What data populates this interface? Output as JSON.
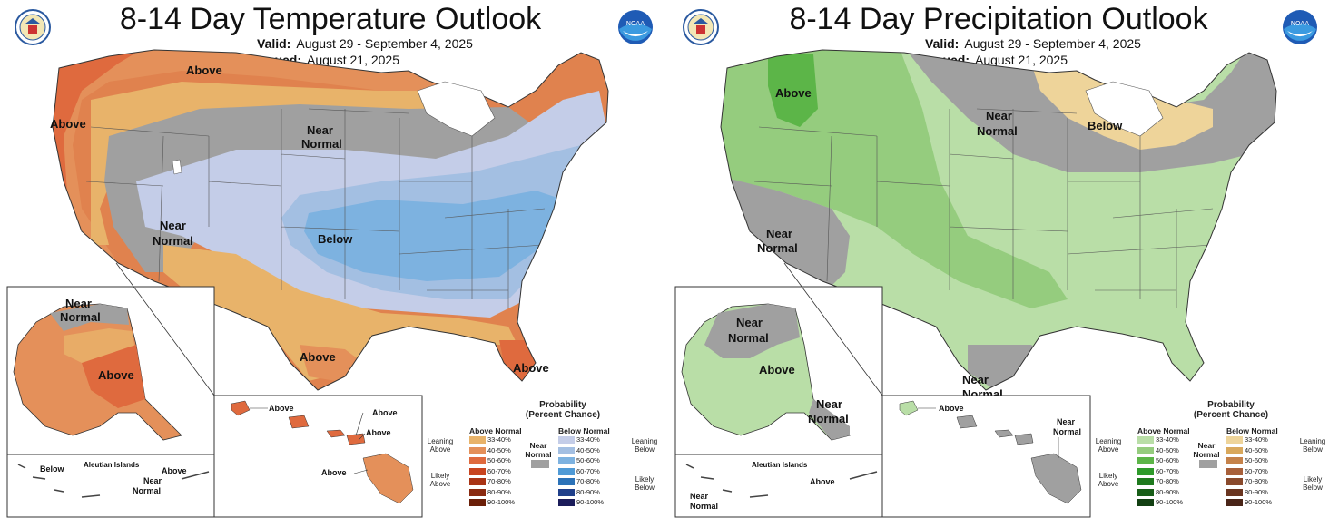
{
  "temperature": {
    "title": "8-14 Day Temperature Outlook",
    "valid_label": "Valid:",
    "valid_value": "August 29 - September 4, 2025",
    "issued_label": "Issued:",
    "issued_value": "August 21, 2025",
    "map_labels": {
      "above_pnw": "Above",
      "above_west": "Above",
      "near_normal_north": "Near",
      "near_normal_north2": "Normal",
      "near_normal_sw": "Near",
      "near_normal_sw2": "Normal",
      "below": "Below",
      "above_texas": "Above",
      "above_florida": "Above",
      "ak_near": "Near",
      "ak_normal": "Normal",
      "ak_above": "Above",
      "aleutian_title": "Aleutian Islands",
      "aleutian_below": "Below",
      "aleutian_above": "Above",
      "aleutian_near": "Near",
      "aleutian_normal": "Normal",
      "hi_above1": "Above",
      "hi_above2": "Above",
      "hi_above3": "Above",
      "hi_above4": "Above"
    },
    "legend": {
      "title1": "Probability",
      "title2": "(Percent Chance)",
      "left_header": "Above Normal",
      "right_header": "Below Normal",
      "near_normal": "Near\nNormal",
      "leaning_left": "Leaning\nAbove",
      "likely_left": "Likely\nAbove",
      "leaning_right": "Leaning\nBelow",
      "likely_right": "Likely\nBelow",
      "ranges": [
        "33-40%",
        "40-50%",
        "50-60%",
        "60-70%",
        "70-80%",
        "80-90%",
        "90-100%"
      ],
      "left_colors": [
        "#e8b36a",
        "#e4905a",
        "#df6a3e",
        "#c8441f",
        "#a93415",
        "#8a2a10",
        "#6b1f08"
      ],
      "right_colors": [
        "#c4cde8",
        "#a3bfe2",
        "#7db2e0",
        "#4f9ad6",
        "#2b72b8",
        "#1f3f8a",
        "#1b1c5a"
      ],
      "near_color": "#a0a0a0"
    }
  },
  "precipitation": {
    "title": "8-14 Day Precipitation Outlook",
    "valid_label": "Valid:",
    "valid_value": "August 29 - September 4, 2025",
    "issued_label": "Issued:",
    "issued_value": "August 21, 2025",
    "map_labels": {
      "above_nw": "Above",
      "near_north": "Near",
      "near_north2": "Normal",
      "below_gl": "Below",
      "near_sw": "Near",
      "near_sw2": "Normal",
      "near_tx": "Near",
      "near_tx2": "Normal",
      "ak_near": "Near",
      "ak_normal": "Normal",
      "ak_above": "Above",
      "ak_se_near": "Near",
      "ak_se_normal": "Normal",
      "aleutian_title": "Aleutian Islands",
      "aleutian_near": "Near",
      "aleutian_normal": "Normal",
      "aleutian_above": "Above",
      "hi_above": "Above",
      "hi_near": "Near",
      "hi_normal": "Normal"
    },
    "legend": {
      "title1": "Probability",
      "title2": "(Percent Chance)",
      "left_header": "Above Normal",
      "right_header": "Below Normal",
      "near_normal": "Near\nNormal",
      "leaning_left": "Leaning\nAbove",
      "likely_left": "Likely\nAbove",
      "leaning_right": "Leaning\nBelow",
      "likely_right": "Likely\nBelow",
      "ranges": [
        "33-40%",
        "40-50%",
        "50-60%",
        "60-70%",
        "70-80%",
        "80-90%",
        "90-100%"
      ],
      "left_colors": [
        "#b9dea7",
        "#95cc7e",
        "#5cb548",
        "#2e9a2a",
        "#1f7a1e",
        "#185e18",
        "#123f12"
      ],
      "right_colors": [
        "#eed49a",
        "#d9a85c",
        "#c5824a",
        "#a8603a",
        "#8a4a2c",
        "#6a3520",
        "#4a2518"
      ],
      "near_color": "#a0a0a0"
    }
  }
}
